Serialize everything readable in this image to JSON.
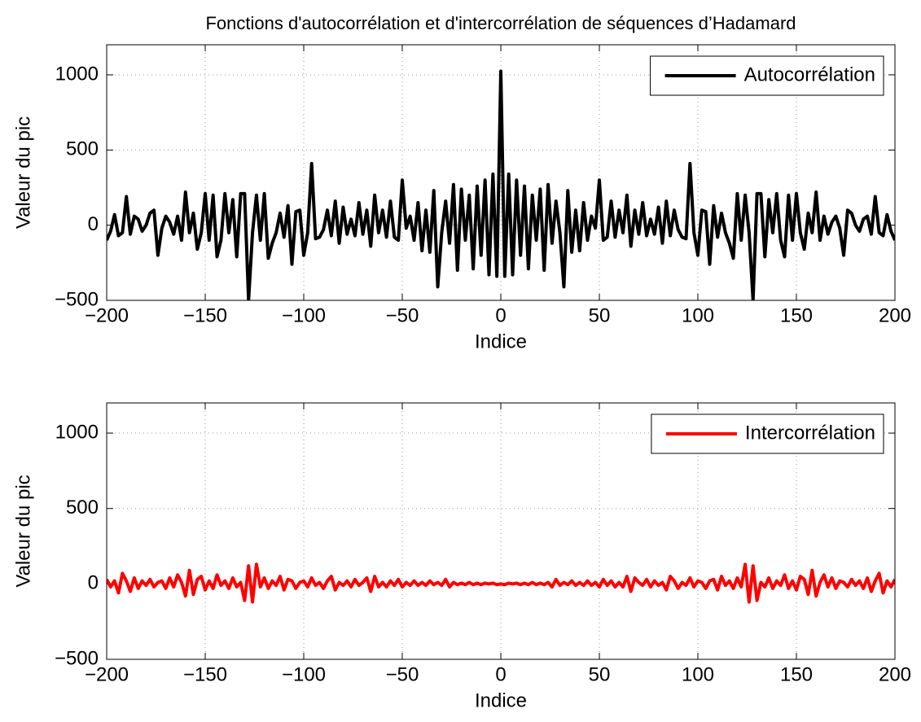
{
  "chart_data": [
    {
      "type": "line",
      "title": "Fonctions d'autocorrélation et d'intercorrélation de séquences d’Hadamard",
      "xlabel": "Indice",
      "ylabel": "Valeur du pic",
      "xlim": [
        -200,
        200
      ],
      "ylim": [
        -500,
        1200
      ],
      "grid": true,
      "legend": "upper right",
      "xticks": [
        {
          "value": -200,
          "label": "−200"
        },
        {
          "value": -150,
          "label": "−150"
        },
        {
          "value": -100,
          "label": "−100"
        },
        {
          "value": -50,
          "label": "−50"
        },
        0,
        50,
        100,
        150,
        200
      ],
      "yticks": [
        {
          "value": -500,
          "label": "−500"
        },
        0,
        500,
        1000
      ],
      "x": [
        -200,
        -198,
        -196,
        -194,
        -192,
        -190,
        -188,
        -186,
        -184,
        -182,
        -180,
        -178,
        -176,
        -174,
        -172,
        -170,
        -168,
        -166,
        -164,
        -162,
        -160,
        -158,
        -156,
        -154,
        -152,
        -150,
        -148,
        -146,
        -144,
        -142,
        -140,
        -138,
        -136,
        -134,
        -132,
        -130,
        -128,
        -126,
        -124,
        -122,
        -120,
        -118,
        -116,
        -114,
        -112,
        -110,
        -108,
        -106,
        -104,
        -102,
        -100,
        -98,
        -96,
        -94,
        -92,
        -90,
        -88,
        -86,
        -84,
        -82,
        -80,
        -78,
        -76,
        -74,
        -72,
        -70,
        -68,
        -66,
        -64,
        -62,
        -60,
        -58,
        -56,
        -54,
        -52,
        -50,
        -48,
        -46,
        -44,
        -42,
        -40,
        -38,
        -36,
        -34,
        -32,
        -30,
        -28,
        -26,
        -24,
        -22,
        -20,
        -18,
        -16,
        -14,
        -12,
        -10,
        -8,
        -6,
        -4,
        -2,
        0,
        2,
        4,
        6,
        8,
        10,
        12,
        14,
        16,
        18,
        20,
        22,
        24,
        26,
        28,
        30,
        32,
        34,
        36,
        38,
        40,
        42,
        44,
        46,
        48,
        50,
        52,
        54,
        56,
        58,
        60,
        62,
        64,
        66,
        68,
        70,
        72,
        74,
        76,
        78,
        80,
        82,
        84,
        86,
        88,
        90,
        92,
        94,
        96,
        98,
        100,
        102,
        104,
        106,
        108,
        110,
        112,
        114,
        116,
        118,
        120,
        122,
        124,
        126,
        128,
        130,
        132,
        134,
        136,
        138,
        140,
        142,
        144,
        146,
        148,
        150,
        152,
        154,
        156,
        158,
        160,
        162,
        164,
        166,
        168,
        170,
        172,
        174,
        176,
        178,
        180,
        182,
        184,
        186,
        188,
        190,
        192,
        194,
        196,
        198,
        200
      ],
      "series": [
        {
          "name": "Autocorrélation",
          "color": "#000000",
          "values": [
            -100,
            -40,
            70,
            -70,
            -50,
            190,
            -60,
            60,
            40,
            -40,
            0,
            80,
            100,
            -200,
            -20,
            60,
            20,
            -60,
            60,
            -100,
            220,
            -50,
            80,
            -160,
            -50,
            210,
            -100,
            200,
            -210,
            -100,
            210,
            -50,
            170,
            -210,
            210,
            210,
            -500,
            -50,
            200,
            -100,
            210,
            -220,
            -120,
            -50,
            80,
            -80,
            130,
            -260,
            90,
            100,
            -200,
            -50,
            410,
            -90,
            -80,
            -30,
            100,
            -70,
            160,
            -120,
            120,
            -60,
            40,
            -70,
            150,
            -60,
            100,
            -140,
            200,
            -50,
            100,
            -80,
            160,
            -80,
            -100,
            300,
            -20,
            60,
            -100,
            150,
            -170,
            100,
            -180,
            230,
            -410,
            -50,
            160,
            -120,
            270,
            -300,
            240,
            -100,
            200,
            -290,
            260,
            -200,
            300,
            -330,
            340,
            -340,
            1024,
            -340,
            340,
            -330,
            300,
            -200,
            260,
            -290,
            200,
            -100,
            240,
            -300,
            270,
            -120,
            160,
            -50,
            -410,
            230,
            -180,
            100,
            -170,
            150,
            -100,
            60,
            -20,
            300,
            -100,
            -80,
            160,
            -80,
            100,
            -50,
            200,
            -140,
            100,
            -60,
            150,
            -70,
            40,
            -60,
            120,
            -120,
            160,
            -70,
            100,
            -30,
            -80,
            -90,
            410,
            -50,
            -200,
            100,
            90,
            -260,
            130,
            -80,
            80,
            -50,
            -120,
            -220,
            210,
            -100,
            200,
            -50,
            -500,
            210,
            210,
            -210,
            170,
            -50,
            210,
            -100,
            -210,
            200,
            -100,
            210,
            -50,
            -160,
            80,
            -50,
            220,
            -100,
            60,
            -60,
            20,
            60,
            -20,
            -200,
            100,
            80,
            0,
            -40,
            40,
            60,
            -60,
            190,
            -50,
            -70,
            70,
            -40,
            -100
          ]
        }
      ]
    },
    {
      "type": "line",
      "xlabel": "Indice",
      "ylabel": "Valeur du pic",
      "xlim": [
        -200,
        200
      ],
      "ylim": [
        -500,
        1200
      ],
      "grid": true,
      "legend": "upper right",
      "xticks": [
        {
          "value": -200,
          "label": "−200"
        },
        {
          "value": -150,
          "label": "−150"
        },
        {
          "value": -100,
          "label": "−100"
        },
        {
          "value": -50,
          "label": "−50"
        },
        0,
        50,
        100,
        150,
        200
      ],
      "yticks": [
        {
          "value": -500,
          "label": "−500"
        },
        0,
        500,
        1000
      ],
      "x": [
        -200,
        -198,
        -196,
        -194,
        -192,
        -190,
        -188,
        -186,
        -184,
        -182,
        -180,
        -178,
        -176,
        -174,
        -172,
        -170,
        -168,
        -166,
        -164,
        -162,
        -160,
        -158,
        -156,
        -154,
        -152,
        -150,
        -148,
        -146,
        -144,
        -142,
        -140,
        -138,
        -136,
        -134,
        -132,
        -130,
        -128,
        -126,
        -124,
        -122,
        -120,
        -118,
        -116,
        -114,
        -112,
        -110,
        -108,
        -106,
        -104,
        -102,
        -100,
        -98,
        -96,
        -94,
        -92,
        -90,
        -88,
        -86,
        -84,
        -82,
        -80,
        -78,
        -76,
        -74,
        -72,
        -70,
        -68,
        -66,
        -64,
        -62,
        -60,
        -58,
        -56,
        -54,
        -52,
        -50,
        -48,
        -46,
        -44,
        -42,
        -40,
        -38,
        -36,
        -34,
        -32,
        -30,
        -28,
        -26,
        -24,
        -22,
        -20,
        -18,
        -16,
        -14,
        -12,
        -10,
        -8,
        -6,
        -4,
        -2,
        0,
        2,
        4,
        6,
        8,
        10,
        12,
        14,
        16,
        18,
        20,
        22,
        24,
        26,
        28,
        30,
        32,
        34,
        36,
        38,
        40,
        42,
        44,
        46,
        48,
        50,
        52,
        54,
        56,
        58,
        60,
        62,
        64,
        66,
        68,
        70,
        72,
        74,
        76,
        78,
        80,
        82,
        84,
        86,
        88,
        90,
        92,
        94,
        96,
        98,
        100,
        102,
        104,
        106,
        108,
        110,
        112,
        114,
        116,
        118,
        120,
        122,
        124,
        126,
        128,
        130,
        132,
        134,
        136,
        138,
        140,
        142,
        144,
        146,
        148,
        150,
        152,
        154,
        156,
        158,
        160,
        162,
        164,
        166,
        168,
        170,
        172,
        174,
        176,
        178,
        180,
        182,
        184,
        186,
        188,
        190,
        192,
        194,
        196,
        198,
        200
      ],
      "series": [
        {
          "name": "Intercorrélation",
          "color": "#ff0000",
          "values": [
            30,
            -20,
            20,
            -60,
            70,
            20,
            -50,
            40,
            -30,
            20,
            -10,
            30,
            -20,
            10,
            20,
            -30,
            40,
            -20,
            60,
            10,
            -80,
            90,
            -70,
            30,
            50,
            -40,
            20,
            -30,
            60,
            -10,
            20,
            -30,
            40,
            -20,
            10,
            -110,
            120,
            -120,
            130,
            -20,
            40,
            -30,
            20,
            -10,
            50,
            -40,
            30,
            20,
            -30,
            10,
            20,
            -20,
            40,
            -10,
            10,
            -30,
            20,
            50,
            -40,
            10,
            -10,
            20,
            -20,
            30,
            -10,
            10,
            40,
            -50,
            50,
            -20,
            10,
            -20,
            20,
            -10,
            30,
            -20,
            10,
            -10,
            20,
            -10,
            10,
            -10,
            20,
            -5,
            10,
            -10,
            30,
            -20,
            10,
            -5,
            5,
            -5,
            10,
            -5,
            5,
            -5,
            5,
            0,
            5,
            -5,
            0,
            -5,
            5,
            0,
            5,
            -5,
            5,
            -5,
            10,
            -5,
            5,
            -5,
            10,
            -20,
            30,
            -10,
            10,
            -5,
            20,
            -10,
            10,
            -10,
            20,
            -10,
            10,
            -20,
            30,
            -10,
            20,
            -20,
            10,
            -20,
            50,
            -50,
            40,
            10,
            -10,
            30,
            -20,
            20,
            -10,
            10,
            -40,
            50,
            20,
            -30,
            10,
            -10,
            40,
            -20,
            20,
            10,
            -30,
            20,
            30,
            -40,
            50,
            -10,
            20,
            -30,
            40,
            -20,
            130,
            -120,
            120,
            -110,
            10,
            -20,
            40,
            -30,
            20,
            -10,
            60,
            -30,
            20,
            -40,
            50,
            30,
            -70,
            90,
            -80,
            10,
            60,
            -20,
            40,
            -30,
            20,
            10,
            -20,
            30,
            -10,
            20,
            -30,
            40,
            -50,
            20,
            70,
            -60,
            20,
            -20,
            30
          ]
        }
      ]
    }
  ]
}
